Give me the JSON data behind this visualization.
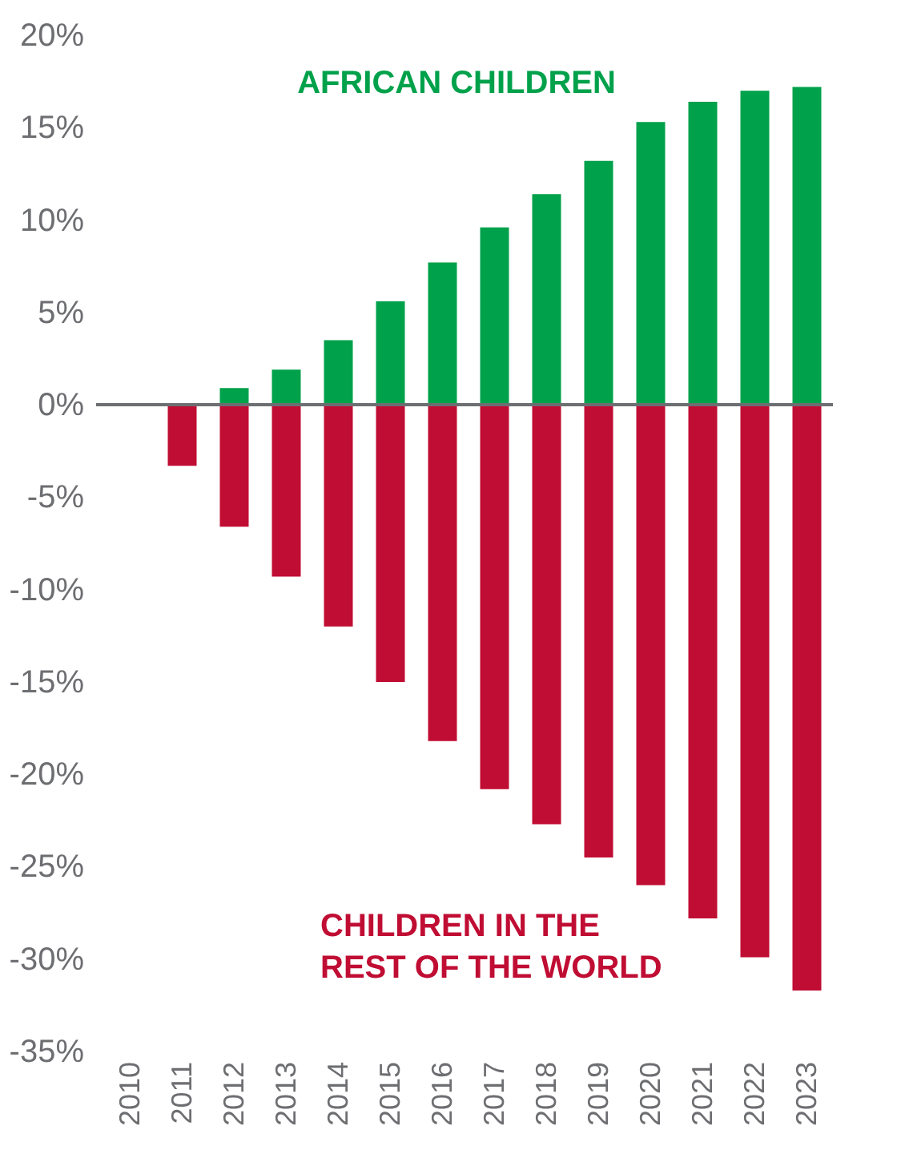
{
  "chart_data": {
    "type": "bar",
    "stacked": true,
    "categories": [
      "2010",
      "2011",
      "2012",
      "2013",
      "2014",
      "2015",
      "2016",
      "2017",
      "2018",
      "2019",
      "2020",
      "2021",
      "2022",
      "2023"
    ],
    "series": [
      {
        "name": "AFRICAN CHILDREN",
        "color": "#00a14b",
        "values": [
          0,
          null,
          0.9,
          1.9,
          3.5,
          5.6,
          7.7,
          9.6,
          11.4,
          13.2,
          15.3,
          16.4,
          17.0,
          17.2
        ]
      },
      {
        "name": "CHILDREN IN THE\nREST OF THE WORLD",
        "color": "#c00d33",
        "values": [
          0,
          -3.3,
          -6.6,
          -9.3,
          -12.0,
          -15.0,
          -18.2,
          -20.8,
          -22.7,
          -24.5,
          -26.0,
          -27.8,
          -29.9,
          -31.7
        ]
      }
    ],
    "ylim": [
      -35,
      20
    ],
    "yticks": [
      {
        "value": 20,
        "label": "20%"
      },
      {
        "value": 15,
        "label": "15%"
      },
      {
        "value": 10,
        "label": "10%"
      },
      {
        "value": 5,
        "label": "5%"
      },
      {
        "value": 0,
        "label": "0%"
      },
      {
        "value": -5,
        "label": "-5%"
      },
      {
        "value": -10,
        "label": "-10%"
      },
      {
        "value": -15,
        "label": "-15%"
      },
      {
        "value": -20,
        "label": "-20%"
      },
      {
        "value": -25,
        "label": "-25%"
      },
      {
        "value": -30,
        "label": "-30%"
      },
      {
        "value": -35,
        "label": "-35%"
      }
    ],
    "ref_lines": [
      {
        "axis": "y",
        "value": 0,
        "color": "#6d6e71"
      }
    ],
    "grid": false,
    "legend": false
  }
}
